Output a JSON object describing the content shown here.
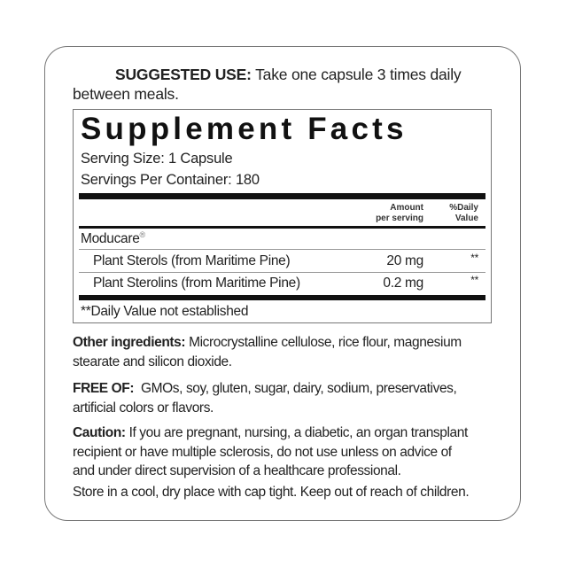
{
  "suggested_use": {
    "label": "SUGGESTED USE:",
    "text_line1": " Take one capsule 3 times daily",
    "text_line2": "between meals."
  },
  "facts": {
    "title": "Supplement Facts",
    "serving_size": "Serving Size: 1 Capsule",
    "servings_per_container": "Servings Per Container: 180",
    "headers": {
      "amount_1": "Amount",
      "amount_2": "per serving",
      "dv_1": "%Daily",
      "dv_2": "Value"
    },
    "group": "Moducare",
    "group_mark": "®",
    "rows": [
      {
        "name": "Plant Sterols (from Maritime Pine)",
        "amount": "20 mg",
        "dv": "**"
      },
      {
        "name": "Plant Sterolins (from Maritime Pine)",
        "amount": "0.2 mg",
        "dv": "**"
      }
    ],
    "footnote": "**Daily Value not established"
  },
  "other": {
    "label": "Other ingredients:",
    "l1": " Microcrystalline cellulose, rice flour, magnesium",
    "l2": "stearate and silicon dioxide."
  },
  "free_of": {
    "label": "FREE OF:",
    "l1": "  GMOs, soy, gluten, sugar, dairy, sodium, preservatives,",
    "l2": "artificial colors or flavors."
  },
  "caution": {
    "label": "Caution:",
    "l1": " If you are pregnant, nursing, a diabetic, an organ transplant",
    "l2": "recipient or have multiple sclerosis, do not use unless on advice of",
    "l3": "and under direct supervision of a healthcare professional."
  },
  "storage": "Store in a cool, dry place with cap tight. Keep out of reach of children."
}
